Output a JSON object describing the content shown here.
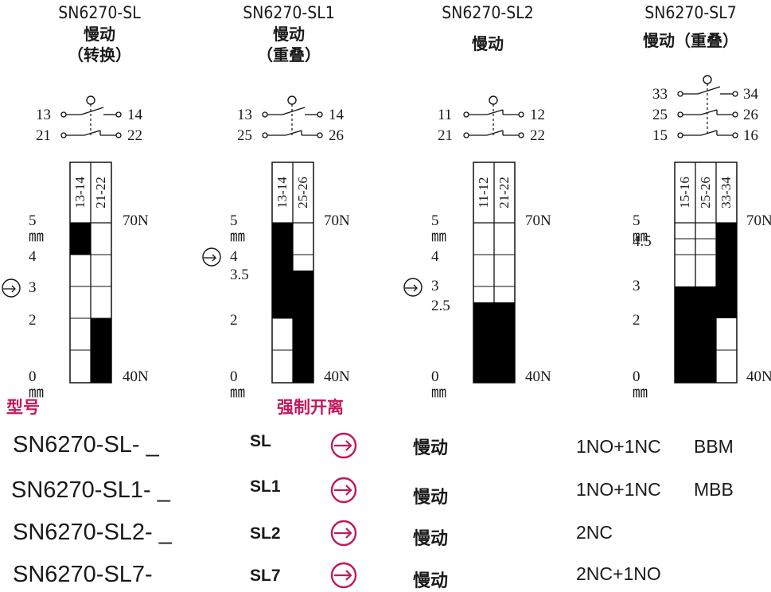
{
  "diagrams": [
    {
      "model": "SN6270-SL",
      "name_line1": "慢动",
      "name_line2": "（转换）",
      "contacts": [
        [
          "13",
          "14"
        ],
        [
          "21",
          "22"
        ]
      ],
      "columns": [
        "13-14",
        "21-22"
      ],
      "travel_labels": [
        "5㎜",
        "4",
        "3",
        "2",
        "0㎜"
      ],
      "force_top": "70N",
      "force_bottom": "40N"
    },
    {
      "model": "SN6270-SL1",
      "name_line1": "慢动",
      "name_line2": "（重叠）",
      "contacts": [
        [
          "13",
          "14"
        ],
        [
          "25",
          "26"
        ]
      ],
      "columns": [
        "13-14",
        "25-26"
      ],
      "travel_labels": [
        "5㎜",
        "4",
        "3.5",
        "2",
        "0㎜"
      ],
      "force_top": "70N",
      "force_bottom": "40N"
    },
    {
      "model": "SN6270-SL2",
      "name_line1": "慢动",
      "contacts": [
        [
          "11",
          "12"
        ],
        [
          "21",
          "22"
        ]
      ],
      "columns": [
        "11-12",
        "21-22"
      ],
      "travel_labels": [
        "5㎜",
        "4",
        "3",
        "2.5",
        "0㎜"
      ],
      "force_top": "70N",
      "force_bottom": "40N"
    },
    {
      "model": "SN6270-SL7",
      "name_line1": "慢动（重叠）",
      "contacts": [
        [
          "33",
          "34"
        ],
        [
          "25",
          "26"
        ],
        [
          "15",
          "16"
        ]
      ],
      "columns": [
        "15-16",
        "25-26",
        "33-34"
      ],
      "travel_labels": [
        "5㎜",
        "4.5",
        "3",
        "2",
        "0㎜"
      ],
      "force_top": "70N",
      "force_bottom": "40N"
    }
  ],
  "legend": {
    "model_heading": "型号",
    "forced_opening_heading": "强制开离",
    "rows": [
      {
        "model": "SN6270-SL- _",
        "code": "SL",
        "action": "慢动",
        "contacts": "1NO+1NC",
        "type": "BBM"
      },
      {
        "model": "SN6270-SL1- _",
        "code": "SL1",
        "action": "慢动",
        "contacts": "1NO+1NC",
        "type": "MBB"
      },
      {
        "model": "SN6270-SL2- _",
        "code": "SL2",
        "action": "慢动",
        "contacts": "2NC",
        "type": ""
      },
      {
        "model": "SN6270-SL7-",
        "code": "SL7",
        "action": "慢动",
        "contacts": "2NC+1NO",
        "type": ""
      }
    ]
  },
  "colors": {
    "ink": "#1a1a1a",
    "accent_red": "#c2185b",
    "filled": "#000000"
  }
}
